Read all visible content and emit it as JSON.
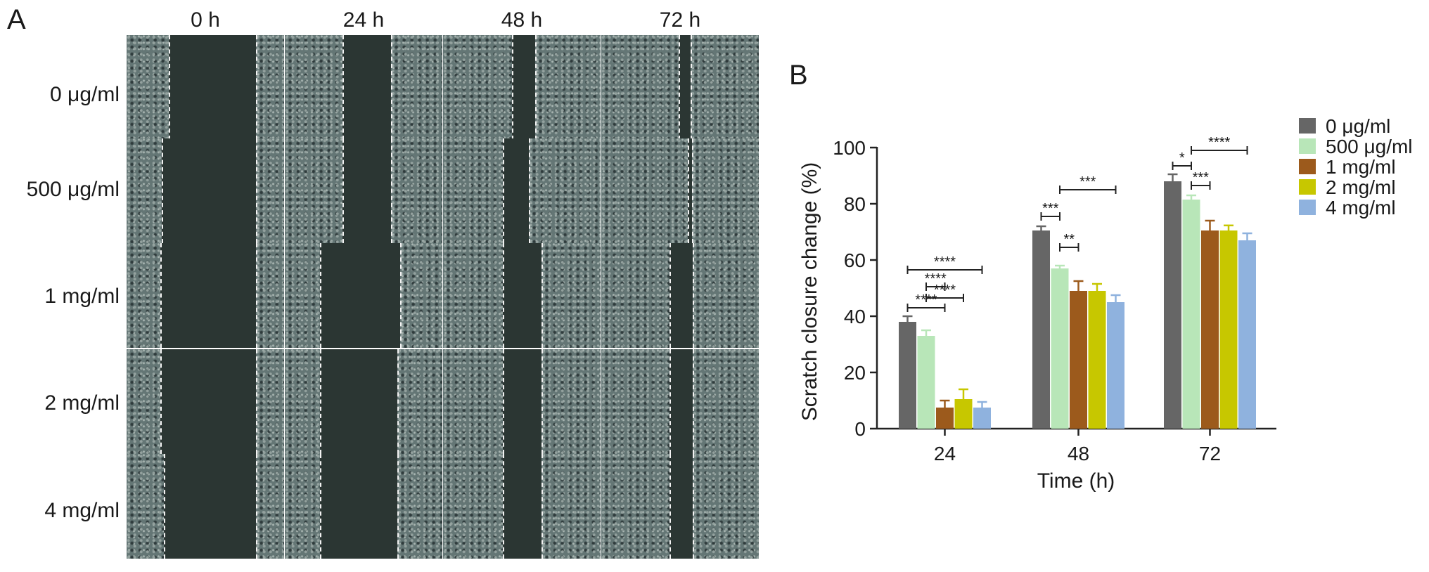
{
  "panel_a": {
    "letter": "A",
    "columns": [
      "0 h",
      "24 h",
      "48 h",
      "72 h"
    ],
    "rows": [
      "0 μg/ml",
      "500 μg/ml",
      "1 mg/ml",
      "2 mg/ml",
      "4 mg/ml"
    ]
  },
  "chart_data": {
    "panel_letter": "B",
    "type": "bar",
    "categories": [
      "24",
      "48",
      "72"
    ],
    "xlabel": "Time (h)",
    "ylabel": "Scratch closure change (%)",
    "ylim": [
      0,
      100
    ],
    "yticks": [
      0,
      20,
      40,
      60,
      80,
      100
    ],
    "legend_position": "top-right",
    "series": [
      {
        "name": "0 μg/ml",
        "color": "#666666",
        "values": [
          38,
          70.5,
          88
        ],
        "errors": [
          2,
          1.5,
          2.5
        ]
      },
      {
        "name": "500 μg/ml",
        "color": "#b8e6b8",
        "values": [
          33,
          57,
          81.5
        ],
        "errors": [
          2,
          1,
          1.5
        ]
      },
      {
        "name": "1 mg/ml",
        "color": "#9c5a1c",
        "values": [
          7.5,
          49,
          70.5
        ],
        "errors": [
          2.5,
          3.5,
          3.5
        ]
      },
      {
        "name": "2 mg/ml",
        "color": "#c7c700",
        "values": [
          10.5,
          49,
          70.5
        ],
        "errors": [
          3.5,
          2.5,
          1.8
        ]
      },
      {
        "name": "4 mg/ml",
        "color": "#8fb2de",
        "values": [
          7.5,
          45,
          67
        ],
        "errors": [
          2,
          2.5,
          2.5
        ]
      }
    ],
    "significance": [
      {
        "category": 0,
        "from": 0,
        "to": 4,
        "y": 56.5,
        "label": "****"
      },
      {
        "category": 0,
        "from": 1,
        "to": 2,
        "y": 50.5,
        "label": "****"
      },
      {
        "category": 0,
        "from": 1,
        "to": 3,
        "y": 46.5,
        "label": "****"
      },
      {
        "category": 0,
        "from": 0,
        "to": 2,
        "y": 43,
        "label": "****"
      },
      {
        "category": 1,
        "from": 1,
        "to": 4,
        "y": 85,
        "label": "***"
      },
      {
        "category": 1,
        "from": 0,
        "to": 1,
        "y": 75.5,
        "label": "***"
      },
      {
        "category": 1,
        "from": 1,
        "to": 2,
        "y": 64.5,
        "label": "**"
      },
      {
        "category": 2,
        "from": 1,
        "to": 4,
        "y": 99,
        "label": "****"
      },
      {
        "category": 2,
        "from": 0,
        "to": 1,
        "y": 93.5,
        "label": "*"
      },
      {
        "category": 2,
        "from": 1,
        "to": 2,
        "y": 86.5,
        "label": "***"
      }
    ]
  }
}
